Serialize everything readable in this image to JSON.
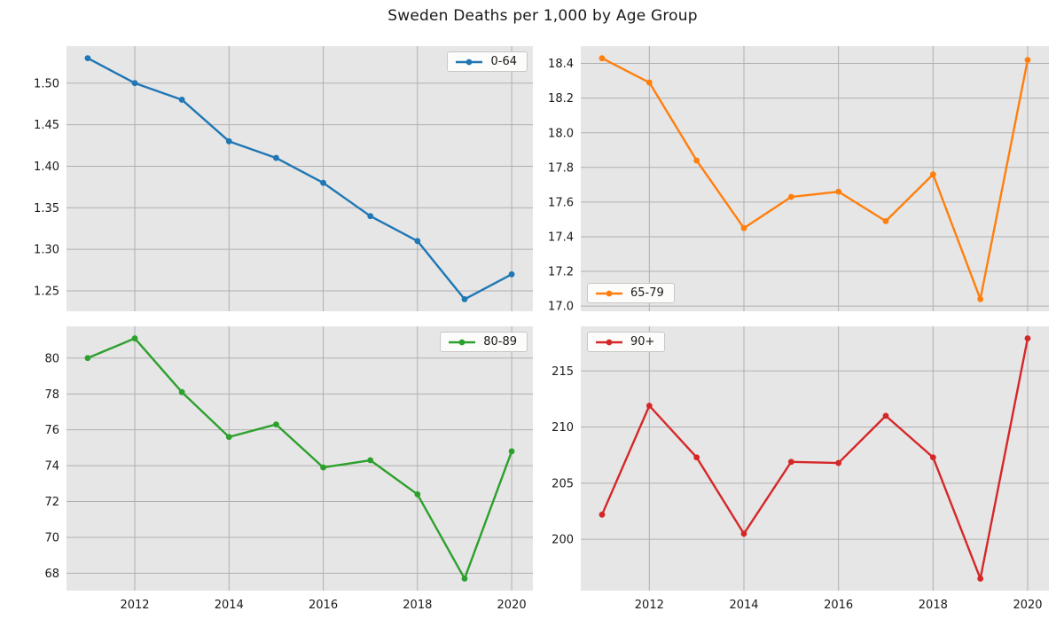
{
  "title": "Sweden Deaths per 1,000 by Age Group",
  "style": {
    "figure_bg": "#ffffff",
    "plot_bg": "#e6e6e6",
    "grid_color": "#b0b0b0",
    "tick_label_color": "#1a1a1a",
    "line_width": 2.4,
    "marker_radius": 3.4
  },
  "chart_data": [
    {
      "type": "line",
      "series_label": "0-64",
      "color": "#1f77b4",
      "x": [
        2011,
        2012,
        2013,
        2014,
        2015,
        2016,
        2017,
        2018,
        2019,
        2020
      ],
      "values": [
        1.53,
        1.5,
        1.48,
        1.43,
        1.41,
        1.38,
        1.34,
        1.31,
        1.24,
        1.27
      ],
      "xlim": [
        2010.55,
        2020.45
      ],
      "ylim": [
        1.2255,
        1.5445
      ],
      "xticks": [
        2012,
        2014,
        2016,
        2018,
        2020
      ],
      "xtick_labels": [
        "2012",
        "2014",
        "2016",
        "2018",
        "2020"
      ],
      "show_xtick_labels": false,
      "ytick_values": [
        1.25,
        1.3,
        1.35,
        1.4,
        1.45,
        1.5
      ],
      "ytick_labels": [
        "1.25",
        "1.30",
        "1.35",
        "1.40",
        "1.45",
        "1.50"
      ],
      "grid": true,
      "legend_pos": "top-right"
    },
    {
      "type": "line",
      "series_label": "65-79",
      "color": "#ff7f0e",
      "x": [
        2011,
        2012,
        2013,
        2014,
        2015,
        2016,
        2017,
        2018,
        2019,
        2020
      ],
      "values": [
        18.43,
        18.29,
        17.84,
        17.45,
        17.63,
        17.66,
        17.49,
        17.76,
        17.04,
        18.42
      ],
      "xlim": [
        2010.55,
        2020.45
      ],
      "ylim": [
        16.97,
        18.5
      ],
      "xticks": [
        2012,
        2014,
        2016,
        2018,
        2020
      ],
      "xtick_labels": [
        "2012",
        "2014",
        "2016",
        "2018",
        "2020"
      ],
      "show_xtick_labels": false,
      "ytick_values": [
        17.0,
        17.2,
        17.4,
        17.6,
        17.8,
        18.0,
        18.2,
        18.4
      ],
      "ytick_labels": [
        "17.0",
        "17.2",
        "17.4",
        "17.6",
        "17.8",
        "18.0",
        "18.2",
        "18.4"
      ],
      "grid": true,
      "legend_pos": "bottom-left"
    },
    {
      "type": "line",
      "series_label": "80-89",
      "color": "#2ca02c",
      "x": [
        2011,
        2012,
        2013,
        2014,
        2015,
        2016,
        2017,
        2018,
        2019,
        2020
      ],
      "values": [
        80.0,
        81.1,
        78.1,
        75.6,
        76.3,
        73.9,
        74.3,
        72.4,
        67.7,
        74.8
      ],
      "xlim": [
        2010.55,
        2020.45
      ],
      "ylim": [
        67.03,
        81.77
      ],
      "xticks": [
        2012,
        2014,
        2016,
        2018,
        2020
      ],
      "xtick_labels": [
        "2012",
        "2014",
        "2016",
        "2018",
        "2020"
      ],
      "show_xtick_labels": true,
      "ytick_values": [
        68,
        70,
        72,
        74,
        76,
        78,
        80
      ],
      "ytick_labels": [
        "68",
        "70",
        "72",
        "74",
        "76",
        "78",
        "80"
      ],
      "grid": true,
      "legend_pos": "top-right"
    },
    {
      "type": "line",
      "series_label": "90+",
      "color": "#d62728",
      "x": [
        2011,
        2012,
        2013,
        2014,
        2015,
        2016,
        2017,
        2018,
        2019,
        2020
      ],
      "values": [
        202.2,
        211.9,
        207.3,
        200.5,
        206.9,
        206.8,
        211.0,
        207.3,
        196.5,
        217.9
      ],
      "xlim": [
        2010.55,
        2020.45
      ],
      "ylim": [
        195.43,
        218.97
      ],
      "xticks": [
        2012,
        2014,
        2016,
        2018,
        2020
      ],
      "xtick_labels": [
        "2012",
        "2014",
        "2016",
        "2018",
        "2020"
      ],
      "show_xtick_labels": true,
      "ytick_values": [
        200,
        205,
        210,
        215
      ],
      "ytick_labels": [
        "200",
        "205",
        "210",
        "215"
      ],
      "grid": true,
      "legend_pos": "top-left"
    }
  ]
}
